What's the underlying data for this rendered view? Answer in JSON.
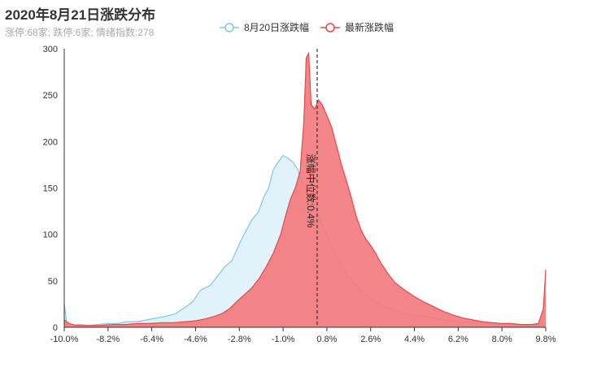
{
  "chart_data": {
    "type": "area",
    "title": "2020年8月21日涨跌分布",
    "subtitle": "涨停:68家; 跌停:6家; 情绪指数:278",
    "x_ticks": [
      "-10.0%",
      "-8.2%",
      "-6.4%",
      "-4.6%",
      "-2.8%",
      "-1.0%",
      "0.8%",
      "2.6%",
      "4.4%",
      "6.2%",
      "8.0%",
      "9.8%"
    ],
    "xlim": [
      -10.0,
      9.8
    ],
    "ylim": [
      0,
      300
    ],
    "y_ticks": [
      0,
      50,
      100,
      150,
      200,
      250,
      300
    ],
    "legend_position": "top-center",
    "median": {
      "x": 0.4,
      "label": "涨幅中位数:0.4%"
    },
    "series": [
      {
        "name": "8月20日涨跌幅",
        "color": "#7ec8e3",
        "fill": "#dff1fa",
        "points": [
          [
            -10.0,
            25
          ],
          [
            -9.9,
            5
          ],
          [
            -9.7,
            2
          ],
          [
            -9.4,
            3
          ],
          [
            -9.0,
            2
          ],
          [
            -8.6,
            3
          ],
          [
            -8.2,
            4
          ],
          [
            -7.8,
            4
          ],
          [
            -7.4,
            6
          ],
          [
            -7.0,
            6
          ],
          [
            -6.6,
            8
          ],
          [
            -6.2,
            10
          ],
          [
            -5.8,
            12
          ],
          [
            -5.4,
            15
          ],
          [
            -5.0,
            22
          ],
          [
            -4.7,
            28
          ],
          [
            -4.4,
            40
          ],
          [
            -4.0,
            45
          ],
          [
            -3.7,
            55
          ],
          [
            -3.4,
            65
          ],
          [
            -3.1,
            72
          ],
          [
            -2.8,
            90
          ],
          [
            -2.5,
            105
          ],
          [
            -2.3,
            115
          ],
          [
            -2.0,
            125
          ],
          [
            -1.8,
            140
          ],
          [
            -1.6,
            150
          ],
          [
            -1.4,
            170
          ],
          [
            -1.2,
            178
          ],
          [
            -1.0,
            185
          ],
          [
            -0.8,
            182
          ],
          [
            -0.6,
            178
          ],
          [
            -0.4,
            170
          ],
          [
            -0.2,
            155
          ],
          [
            0.0,
            145
          ],
          [
            0.2,
            135
          ],
          [
            0.4,
            125
          ],
          [
            0.6,
            112
          ],
          [
            0.8,
            100
          ],
          [
            1.0,
            88
          ],
          [
            1.3,
            72
          ],
          [
            1.6,
            58
          ],
          [
            2.0,
            45
          ],
          [
            2.4,
            35
          ],
          [
            2.8,
            28
          ],
          [
            3.2,
            22
          ],
          [
            3.6,
            18
          ],
          [
            4.0,
            15
          ],
          [
            4.4,
            13
          ],
          [
            4.8,
            12
          ],
          [
            5.2,
            10
          ],
          [
            5.6,
            8
          ],
          [
            6.0,
            7
          ],
          [
            6.4,
            6
          ],
          [
            6.8,
            5
          ],
          [
            7.2,
            4
          ],
          [
            7.6,
            4
          ],
          [
            8.0,
            3
          ],
          [
            8.4,
            3
          ],
          [
            8.8,
            3
          ],
          [
            9.2,
            2
          ],
          [
            9.6,
            2
          ],
          [
            9.8,
            2
          ]
        ]
      },
      {
        "name": "最新涨跌幅",
        "color": "#e8474c",
        "fill": "#f37b7e",
        "points": [
          [
            -10.0,
            8
          ],
          [
            -9.8,
            4
          ],
          [
            -9.5,
            2
          ],
          [
            -9.0,
            2
          ],
          [
            -8.5,
            2
          ],
          [
            -8.0,
            3
          ],
          [
            -7.5,
            3
          ],
          [
            -7.0,
            4
          ],
          [
            -6.5,
            4
          ],
          [
            -6.0,
            5
          ],
          [
            -5.5,
            5
          ],
          [
            -5.0,
            6
          ],
          [
            -4.6,
            7
          ],
          [
            -4.2,
            9
          ],
          [
            -3.8,
            12
          ],
          [
            -3.5,
            15
          ],
          [
            -3.2,
            20
          ],
          [
            -2.9,
            28
          ],
          [
            -2.6,
            35
          ],
          [
            -2.3,
            42
          ],
          [
            -2.0,
            52
          ],
          [
            -1.7,
            65
          ],
          [
            -1.4,
            80
          ],
          [
            -1.1,
            100
          ],
          [
            -0.9,
            120
          ],
          [
            -0.7,
            138
          ],
          [
            -0.5,
            150
          ],
          [
            -0.3,
            168
          ],
          [
            -0.15,
            220
          ],
          [
            -0.05,
            290
          ],
          [
            0.05,
            295
          ],
          [
            0.15,
            240
          ],
          [
            0.3,
            235
          ],
          [
            0.45,
            245
          ],
          [
            0.6,
            240
          ],
          [
            0.8,
            228
          ],
          [
            1.0,
            215
          ],
          [
            1.2,
            195
          ],
          [
            1.4,
            175
          ],
          [
            1.6,
            158
          ],
          [
            1.8,
            140
          ],
          [
            2.0,
            120
          ],
          [
            2.2,
            105
          ],
          [
            2.4,
            95
          ],
          [
            2.6,
            88
          ],
          [
            2.8,
            80
          ],
          [
            3.0,
            70
          ],
          [
            3.3,
            58
          ],
          [
            3.6,
            48
          ],
          [
            4.0,
            40
          ],
          [
            4.4,
            33
          ],
          [
            4.8,
            27
          ],
          [
            5.2,
            22
          ],
          [
            5.6,
            17
          ],
          [
            6.0,
            13
          ],
          [
            6.4,
            10
          ],
          [
            6.8,
            8
          ],
          [
            7.2,
            6
          ],
          [
            7.6,
            5
          ],
          [
            8.0,
            4
          ],
          [
            8.4,
            4
          ],
          [
            8.8,
            3
          ],
          [
            9.2,
            3
          ],
          [
            9.5,
            4
          ],
          [
            9.7,
            20
          ],
          [
            9.8,
            62
          ]
        ]
      }
    ]
  }
}
